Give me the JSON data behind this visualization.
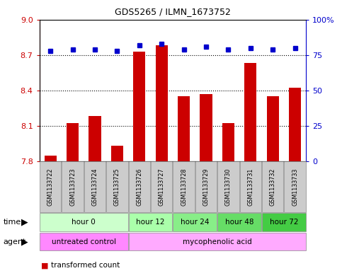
{
  "title": "GDS5265 / ILMN_1673752",
  "samples": [
    "GSM1133722",
    "GSM1133723",
    "GSM1133724",
    "GSM1133725",
    "GSM1133726",
    "GSM1133727",
    "GSM1133728",
    "GSM1133729",
    "GSM1133730",
    "GSM1133731",
    "GSM1133732",
    "GSM1133733"
  ],
  "bar_values": [
    7.85,
    8.12,
    8.18,
    7.93,
    8.73,
    8.78,
    8.35,
    8.37,
    8.12,
    8.63,
    8.35,
    8.42
  ],
  "percentile_values": [
    78,
    79,
    79,
    78,
    82,
    83,
    79,
    81,
    79,
    80,
    79,
    80
  ],
  "ylim_left": [
    7.8,
    9.0
  ],
  "ylim_right": [
    0,
    100
  ],
  "yticks_left": [
    7.8,
    8.1,
    8.4,
    8.7,
    9.0
  ],
  "yticks_right": [
    0,
    25,
    50,
    75,
    100
  ],
  "ytick_labels_right": [
    "0",
    "25",
    "50",
    "75",
    "100%"
  ],
  "bar_color": "#cc0000",
  "dot_color": "#0000cc",
  "bar_bottom": 7.8,
  "grid_lines": [
    8.7,
    8.4,
    8.1
  ],
  "time_groups": [
    {
      "label": "hour 0",
      "start": 0,
      "end": 4,
      "color": "#ccffcc"
    },
    {
      "label": "hour 12",
      "start": 4,
      "end": 6,
      "color": "#aaffaa"
    },
    {
      "label": "hour 24",
      "start": 6,
      "end": 8,
      "color": "#88ee88"
    },
    {
      "label": "hour 48",
      "start": 8,
      "end": 10,
      "color": "#66dd66"
    },
    {
      "label": "hour 72",
      "start": 10,
      "end": 12,
      "color": "#44cc44"
    }
  ],
  "agent_groups": [
    {
      "label": "untreated control",
      "start": 0,
      "end": 4,
      "color": "#ff88ff"
    },
    {
      "label": "mycophenolic acid",
      "start": 4,
      "end": 12,
      "color": "#ffaaff"
    }
  ],
  "bg_color": "#ffffff",
  "sample_bg_color": "#cccccc",
  "chart_border_color": "#000000"
}
